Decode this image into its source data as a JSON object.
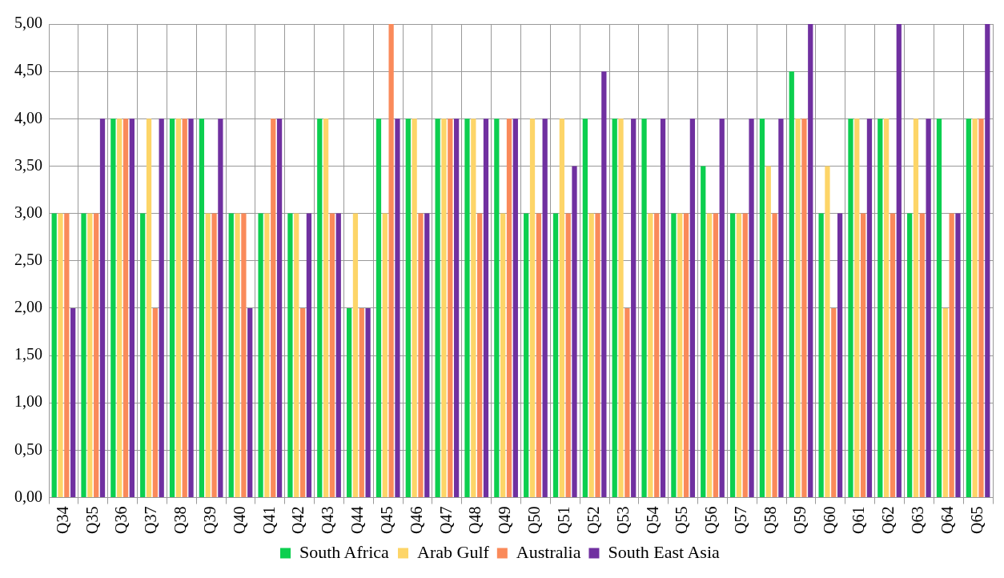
{
  "chart_data": {
    "type": "bar",
    "categories": [
      "Q34",
      "Q35",
      "Q36",
      "Q37",
      "Q38",
      "Q39",
      "Q40",
      "Q41",
      "Q42",
      "Q43",
      "Q44",
      "Q45",
      "Q46",
      "Q47",
      "Q48",
      "Q49",
      "Q50",
      "Q51",
      "Q52",
      "Q53",
      "Q54",
      "Q55",
      "Q56",
      "Q57",
      "Q58",
      "Q59",
      "Q60",
      "Q61",
      "Q62",
      "Q63",
      "Q64",
      "Q65"
    ],
    "series": [
      {
        "name": "South Africa",
        "color": "#0ccf4f",
        "values": [
          3,
          3,
          4,
          3,
          4,
          4,
          3,
          3,
          3,
          4,
          2,
          4,
          4,
          4,
          4,
          4,
          3,
          3,
          4,
          4,
          4,
          3,
          3.5,
          3,
          4,
          4.5,
          3,
          4,
          4,
          3,
          4,
          4
        ]
      },
      {
        "name": "Arab Gulf",
        "color": "#fdd568",
        "values": [
          3,
          3,
          4,
          4,
          4,
          3,
          3,
          3,
          3,
          4,
          3,
          3,
          4,
          4,
          4,
          3,
          4,
          4,
          3,
          4,
          3,
          3,
          3,
          3,
          3.5,
          4,
          3.5,
          4,
          4,
          4,
          2,
          4
        ]
      },
      {
        "name": "Australia",
        "color": "#fa8a5a",
        "values": [
          3,
          3,
          4,
          2,
          4,
          3,
          3,
          4,
          2,
          3,
          2,
          5,
          3,
          4,
          3,
          4,
          3,
          3,
          3,
          2,
          3,
          3,
          3,
          3,
          3,
          4,
          2,
          3,
          3,
          3,
          3,
          4
        ]
      },
      {
        "name": "South East Asia",
        "color": "#7030a0",
        "values": [
          2,
          4,
          4,
          4,
          4,
          4,
          2,
          4,
          3,
          3,
          2,
          4,
          3,
          4,
          4,
          4,
          4,
          3.5,
          4.5,
          4,
          4,
          4,
          4,
          4,
          4,
          5,
          3,
          4,
          5,
          4,
          3,
          5
        ]
      }
    ],
    "ylim": [
      0,
      5
    ],
    "yticks": [
      {
        "value": 0,
        "label": "0,00"
      },
      {
        "value": 0.5,
        "label": "0,50"
      },
      {
        "value": 1,
        "label": "1,00"
      },
      {
        "value": 1.5,
        "label": "1,50"
      },
      {
        "value": 2,
        "label": "2,00"
      },
      {
        "value": 2.5,
        "label": "2,50"
      },
      {
        "value": 3,
        "label": "3,00"
      },
      {
        "value": 3.5,
        "label": "3,50"
      },
      {
        "value": 4,
        "label": "4,00"
      },
      {
        "value": 4.5,
        "label": "4,50"
      },
      {
        "value": 5,
        "label": "5,00"
      }
    ],
    "grid": true,
    "legend": "bottom"
  }
}
